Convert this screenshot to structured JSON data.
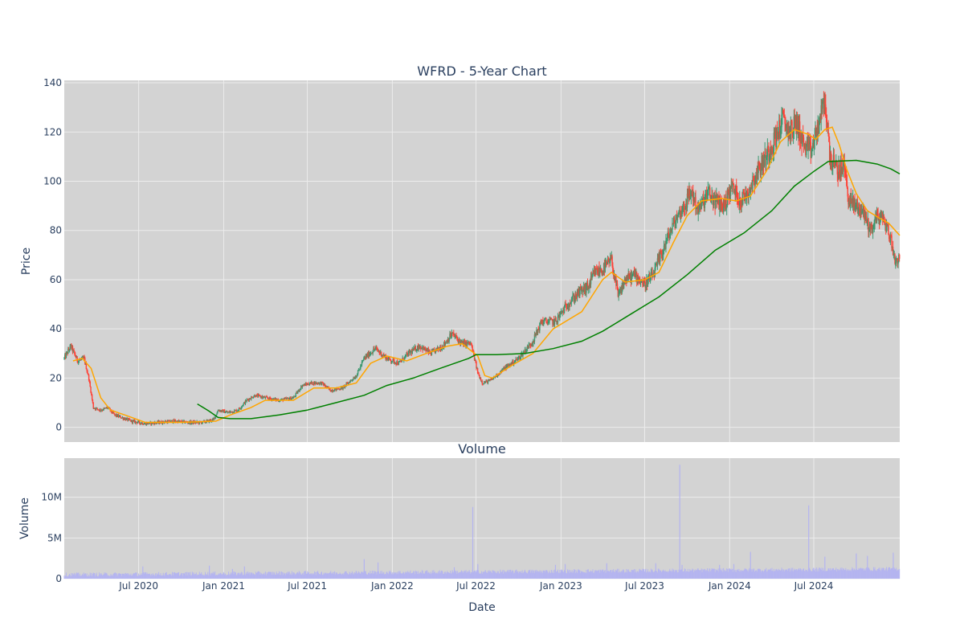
{
  "chart_data": [
    {
      "type": "candlestick",
      "title": "WFRD - 5-Year Chart",
      "ylabel": "Price",
      "ylim": [
        -6,
        141
      ],
      "yticks": [
        0,
        20,
        40,
        60,
        80,
        100,
        120,
        140
      ],
      "x_range": [
        "2020-01-22",
        "2025-01-03"
      ],
      "grid": true,
      "colors": {
        "background": "#d3d3d3",
        "up": "#3d9970",
        "down": "#ff4136",
        "ma_short": "#ffa500",
        "ma_long": "#008000",
        "grid": "#ececec"
      },
      "series": [
        {
          "name": "price_close",
          "points": [
            [
              "2020-01-22",
              28
            ],
            [
              "2020-02-05",
              33
            ],
            [
              "2020-02-20",
              27
            ],
            [
              "2020-03-05",
              28
            ],
            [
              "2020-03-15",
              20
            ],
            [
              "2020-03-25",
              8
            ],
            [
              "2020-04-10",
              7
            ],
            [
              "2020-04-25",
              8
            ],
            [
              "2020-05-10",
              5
            ],
            [
              "2020-05-25",
              4
            ],
            [
              "2020-06-15",
              2.5
            ],
            [
              "2020-07-15",
              1.5
            ],
            [
              "2020-08-15",
              2
            ],
            [
              "2020-09-15",
              2.5
            ],
            [
              "2020-10-15",
              2
            ],
            [
              "2020-11-15",
              2
            ],
            [
              "2020-12-10",
              3
            ],
            [
              "2020-12-20",
              7
            ],
            [
              "2021-01-10",
              6
            ],
            [
              "2021-02-01",
              7
            ],
            [
              "2021-02-20",
              11
            ],
            [
              "2021-03-10",
              13
            ],
            [
              "2021-04-01",
              12
            ],
            [
              "2021-05-01",
              11
            ],
            [
              "2021-06-01",
              12
            ],
            [
              "2021-06-20",
              17
            ],
            [
              "2021-07-10",
              18
            ],
            [
              "2021-08-01",
              18
            ],
            [
              "2021-08-20",
              15
            ],
            [
              "2021-09-15",
              16
            ],
            [
              "2021-10-15",
              21
            ],
            [
              "2021-11-01",
              28
            ],
            [
              "2021-11-25",
              32
            ],
            [
              "2021-12-20",
              28
            ],
            [
              "2022-01-15",
              26
            ],
            [
              "2022-02-05",
              30
            ],
            [
              "2022-03-01",
              33
            ],
            [
              "2022-03-25",
              30
            ],
            [
              "2022-04-20",
              33
            ],
            [
              "2022-05-10",
              38
            ],
            [
              "2022-06-01",
              34
            ],
            [
              "2022-06-20",
              34
            ],
            [
              "2022-07-05",
              22
            ],
            [
              "2022-07-15",
              18
            ],
            [
              "2022-08-01",
              19
            ],
            [
              "2022-09-01",
              24
            ],
            [
              "2022-10-01",
              28
            ],
            [
              "2022-11-01",
              35
            ],
            [
              "2022-11-20",
              43
            ],
            [
              "2022-12-20",
              43
            ],
            [
              "2023-01-15",
              50
            ],
            [
              "2023-02-10",
              55
            ],
            [
              "2023-03-01",
              57
            ],
            [
              "2023-03-15",
              63
            ],
            [
              "2023-04-01",
              64
            ],
            [
              "2023-04-20",
              68
            ],
            [
              "2023-05-05",
              53
            ],
            [
              "2023-05-20",
              60
            ],
            [
              "2023-06-10",
              62
            ],
            [
              "2023-07-01",
              58
            ],
            [
              "2023-07-20",
              62
            ],
            [
              "2023-08-01",
              68
            ],
            [
              "2023-08-20",
              77
            ],
            [
              "2023-09-10",
              86
            ],
            [
              "2023-09-25",
              90
            ],
            [
              "2023-10-10",
              96
            ],
            [
              "2023-10-25",
              88
            ],
            [
              "2023-11-15",
              95
            ],
            [
              "2023-12-01",
              92
            ],
            [
              "2023-12-20",
              90
            ],
            [
              "2024-01-05",
              98
            ],
            [
              "2024-01-25",
              92
            ],
            [
              "2024-02-10",
              96
            ],
            [
              "2024-03-01",
              104
            ],
            [
              "2024-03-20",
              110
            ],
            [
              "2024-04-10",
              118
            ],
            [
              "2024-04-25",
              125
            ],
            [
              "2024-05-10",
              120
            ],
            [
              "2024-05-25",
              124
            ],
            [
              "2024-06-10",
              114
            ],
            [
              "2024-06-25",
              112
            ],
            [
              "2024-07-10",
              122
            ],
            [
              "2024-07-25",
              133
            ],
            [
              "2024-08-05",
              110
            ],
            [
              "2024-08-20",
              104
            ],
            [
              "2024-09-05",
              106
            ],
            [
              "2024-09-15",
              92
            ],
            [
              "2024-10-01",
              90
            ],
            [
              "2024-10-15",
              88
            ],
            [
              "2024-11-01",
              80
            ],
            [
              "2024-11-15",
              86
            ],
            [
              "2024-12-01",
              84
            ],
            [
              "2024-12-15",
              76
            ],
            [
              "2024-12-25",
              67
            ],
            [
              "2025-01-03",
              70
            ]
          ]
        },
        {
          "name": "ma_short",
          "points": [
            [
              "2020-02-10",
              27
            ],
            [
              "2020-03-01",
              28
            ],
            [
              "2020-03-20",
              24
            ],
            [
              "2020-04-10",
              12
            ],
            [
              "2020-05-01",
              7
            ],
            [
              "2020-06-01",
              5
            ],
            [
              "2020-07-15",
              2
            ],
            [
              "2020-10-01",
              2
            ],
            [
              "2020-12-15",
              2.5
            ],
            [
              "2021-01-15",
              5
            ],
            [
              "2021-03-01",
              8
            ],
            [
              "2021-04-01",
              11
            ],
            [
              "2021-06-01",
              11
            ],
            [
              "2021-07-15",
              16
            ],
            [
              "2021-09-01",
              16
            ],
            [
              "2021-10-15",
              18
            ],
            [
              "2021-11-15",
              26
            ],
            [
              "2021-12-20",
              29
            ],
            [
              "2022-02-01",
              27
            ],
            [
              "2022-03-15",
              30
            ],
            [
              "2022-05-01",
              33
            ],
            [
              "2022-06-01",
              34
            ],
            [
              "2022-07-05",
              29
            ],
            [
              "2022-07-20",
              21
            ],
            [
              "2022-08-05",
              20
            ],
            [
              "2022-09-15",
              25
            ],
            [
              "2022-11-01",
              30
            ],
            [
              "2022-12-15",
              40
            ],
            [
              "2023-02-15",
              47
            ],
            [
              "2023-04-01",
              60
            ],
            [
              "2023-04-20",
              63
            ],
            [
              "2023-05-20",
              59
            ],
            [
              "2023-07-01",
              60
            ],
            [
              "2023-08-01",
              63
            ],
            [
              "2023-09-01",
              75
            ],
            [
              "2023-10-01",
              86
            ],
            [
              "2023-11-01",
              92
            ],
            [
              "2023-12-15",
              93
            ],
            [
              "2024-01-15",
              92
            ],
            [
              "2024-02-15",
              94
            ],
            [
              "2024-03-20",
              104
            ],
            [
              "2024-04-20",
              116
            ],
            [
              "2024-05-20",
              121
            ],
            [
              "2024-06-20",
              119
            ],
            [
              "2024-07-05",
              117
            ],
            [
              "2024-07-25",
              121
            ],
            [
              "2024-08-10",
              122
            ],
            [
              "2024-08-25",
              115
            ],
            [
              "2024-09-10",
              105
            ],
            [
              "2024-10-01",
              95
            ],
            [
              "2024-10-25",
              88
            ],
            [
              "2024-11-20",
              85
            ],
            [
              "2024-12-10",
              83
            ],
            [
              "2025-01-03",
              78
            ]
          ]
        },
        {
          "name": "ma_long",
          "points": [
            [
              "2020-11-05",
              9.5
            ],
            [
              "2020-12-01",
              6.5
            ],
            [
              "2020-12-20",
              4
            ],
            [
              "2021-01-15",
              3.5
            ],
            [
              "2021-03-01",
              3.5
            ],
            [
              "2021-05-01",
              5
            ],
            [
              "2021-07-01",
              7
            ],
            [
              "2021-09-01",
              10
            ],
            [
              "2021-11-01",
              13
            ],
            [
              "2021-12-20",
              17
            ],
            [
              "2022-02-15",
              20
            ],
            [
              "2022-04-15",
              24
            ],
            [
              "2022-06-15",
              28
            ],
            [
              "2022-07-01",
              29.5
            ],
            [
              "2022-08-15",
              29.5
            ],
            [
              "2022-10-15",
              30
            ],
            [
              "2022-12-15",
              32
            ],
            [
              "2023-02-15",
              35
            ],
            [
              "2023-04-01",
              39
            ],
            [
              "2023-06-01",
              46
            ],
            [
              "2023-08-01",
              53
            ],
            [
              "2023-10-01",
              62
            ],
            [
              "2023-12-01",
              72
            ],
            [
              "2024-02-01",
              79
            ],
            [
              "2024-04-01",
              88
            ],
            [
              "2024-05-20",
              98
            ],
            [
              "2024-07-01",
              104
            ],
            [
              "2024-08-01",
              108
            ],
            [
              "2024-10-01",
              108.5
            ],
            [
              "2024-11-15",
              107
            ],
            [
              "2024-12-15",
              105
            ],
            [
              "2025-01-03",
              103
            ]
          ]
        }
      ]
    },
    {
      "type": "bar",
      "title": "Volume",
      "xlabel": "Date",
      "ylabel": "Volume",
      "ylim": [
        0,
        14.8
      ],
      "yticks": [
        0,
        5,
        10
      ],
      "ytick_labels": [
        "0",
        "5M",
        "10M"
      ],
      "xticks": [
        "2020-07-01",
        "2021-01-01",
        "2021-07-01",
        "2022-01-01",
        "2022-07-01",
        "2023-01-01",
        "2023-07-01",
        "2024-01-01",
        "2024-07-01"
      ],
      "xtick_labels": [
        "Jul 2020",
        "Jan 2021",
        "Jul 2021",
        "Jan 2022",
        "Jul 2022",
        "Jan 2023",
        "Jul 2023",
        "Jan 2024",
        "Jul 2024"
      ],
      "unit": "millions of shares",
      "colors": {
        "bar": "#b4b4f0",
        "background": "#d3d3d3"
      },
      "spikes": [
        [
          "2020-07-10",
          1.5
        ],
        [
          "2020-12-01",
          1.6
        ],
        [
          "2021-01-20",
          1.2
        ],
        [
          "2021-02-15",
          1.5
        ],
        [
          "2021-11-01",
          2.4
        ],
        [
          "2021-12-01",
          2.0
        ],
        [
          "2022-05-15",
          1.4
        ],
        [
          "2022-06-24",
          8.8
        ],
        [
          "2022-07-05",
          1.8
        ],
        [
          "2022-12-20",
          1.7
        ],
        [
          "2023-01-10",
          1.8
        ],
        [
          "2023-04-10",
          1.9
        ],
        [
          "2023-07-25",
          1.9
        ],
        [
          "2023-09-15",
          14
        ],
        [
          "2023-09-20",
          1.7
        ],
        [
          "2023-12-10",
          1.7
        ],
        [
          "2024-01-10",
          1.8
        ],
        [
          "2024-02-15",
          3.3
        ],
        [
          "2024-06-20",
          9.0
        ],
        [
          "2024-07-25",
          2.7
        ],
        [
          "2024-10-01",
          3.1
        ],
        [
          "2024-10-25",
          2.8
        ],
        [
          "2024-12-20",
          3.2
        ]
      ]
    }
  ]
}
